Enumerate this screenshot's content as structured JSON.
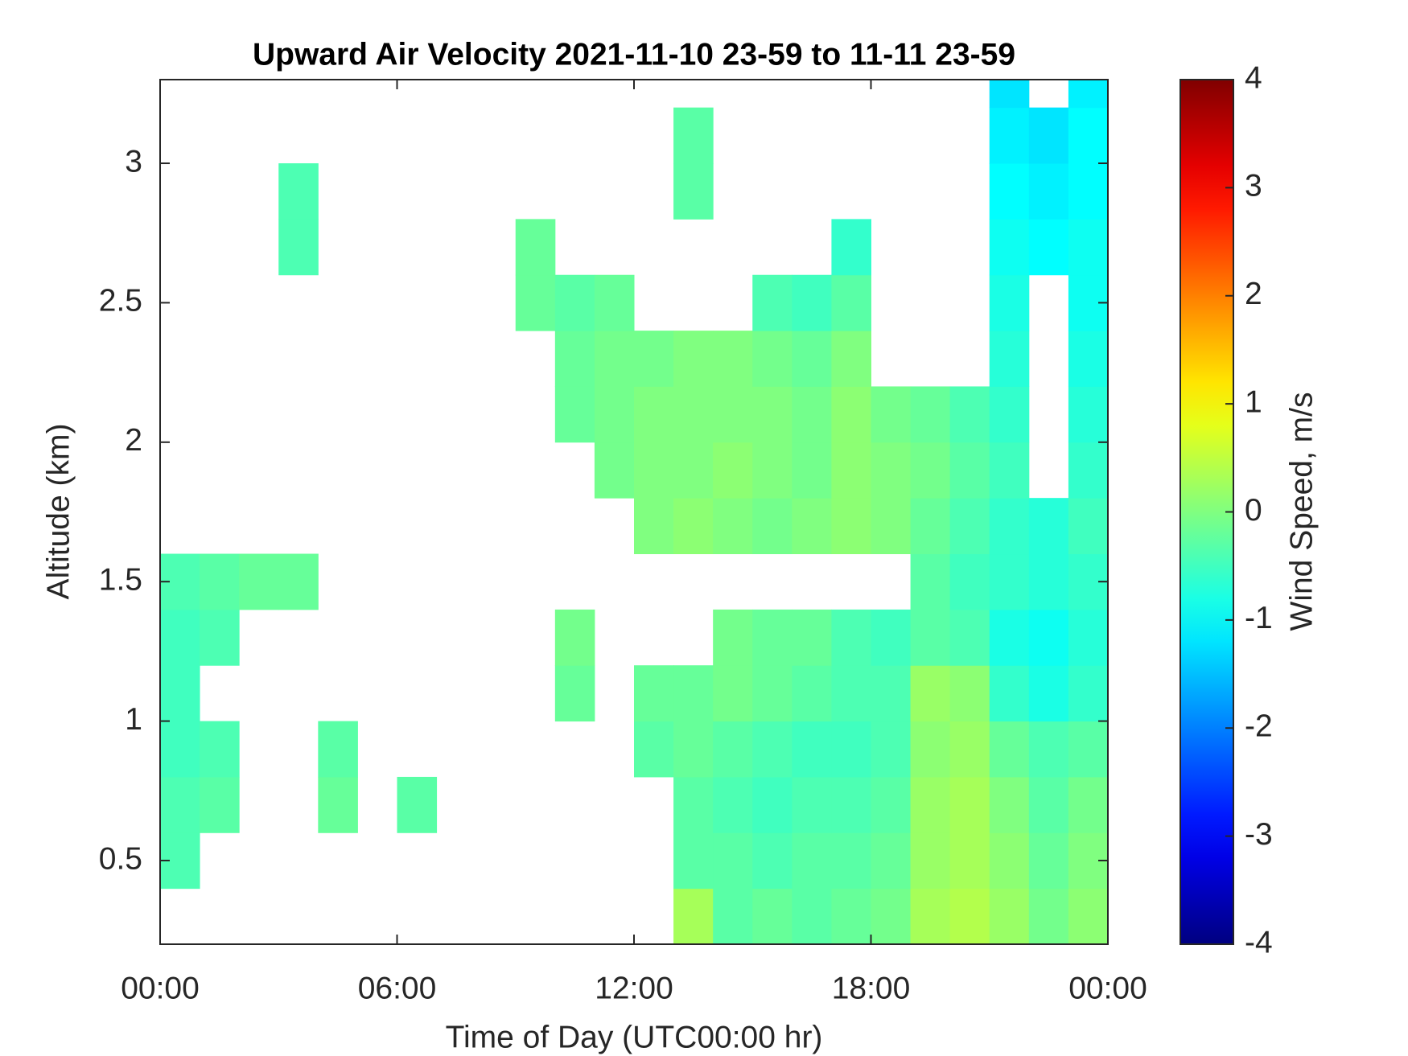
{
  "chart_data": {
    "type": "heatmap",
    "title": "Upward Air Velocity 2021-11-10 23-59 to 11-11 23-59",
    "xlabel": "Time of Day (UTC00:00 hr)",
    "ylabel": "Altitude (km)",
    "colorbar_label": "Wind Speed, m/s",
    "colormap": "jet",
    "x_edges": [
      0,
      1,
      2,
      3,
      4,
      5,
      6,
      7,
      8,
      9,
      10,
      11,
      12,
      13,
      14,
      15,
      16,
      17,
      18,
      19,
      20,
      21,
      22,
      23,
      24
    ],
    "y_edges": [
      0.2,
      0.4,
      0.6,
      0.8,
      1.0,
      1.2,
      1.4,
      1.6,
      1.8,
      2.0,
      2.2,
      2.4,
      2.6,
      2.8,
      3.0,
      3.2,
      3.3
    ],
    "values": [
      [
        null,
        null,
        null,
        null,
        null,
        null,
        null,
        null,
        null,
        null,
        null,
        null,
        null,
        0.3,
        -0.3,
        -0.2,
        -0.3,
        -0.2,
        -0.1,
        0.3,
        0.4,
        0.2,
        -0.1,
        0.1
      ],
      [
        -0.4,
        null,
        null,
        null,
        null,
        null,
        null,
        null,
        null,
        null,
        null,
        null,
        null,
        -0.3,
        -0.3,
        -0.4,
        -0.3,
        -0.3,
        -0.2,
        0.2,
        0.3,
        0.1,
        -0.2,
        0
      ],
      [
        -0.4,
        -0.3,
        null,
        null,
        -0.2,
        null,
        -0.3,
        null,
        null,
        null,
        null,
        null,
        null,
        -0.3,
        -0.4,
        -0.5,
        -0.4,
        -0.4,
        -0.3,
        0.2,
        0.3,
        0,
        -0.3,
        -0.1
      ],
      [
        -0.5,
        -0.4,
        null,
        null,
        -0.3,
        null,
        null,
        null,
        null,
        null,
        null,
        null,
        -0.3,
        -0.2,
        -0.3,
        -0.4,
        -0.5,
        -0.5,
        -0.4,
        0.1,
        0.2,
        -0.2,
        -0.4,
        -0.3
      ],
      [
        -0.5,
        null,
        null,
        null,
        null,
        null,
        null,
        null,
        null,
        null,
        -0.2,
        null,
        -0.2,
        -0.2,
        -0.1,
        -0.2,
        -0.3,
        -0.4,
        -0.4,
        0.2,
        0.1,
        -0.6,
        -0.8,
        -0.6
      ],
      [
        -0.5,
        -0.4,
        null,
        null,
        null,
        null,
        null,
        null,
        null,
        null,
        -0.1,
        null,
        null,
        null,
        -0.1,
        -0.2,
        -0.2,
        -0.4,
        -0.5,
        -0.3,
        -0.4,
        -0.8,
        -0.9,
        -0.7
      ],
      [
        -0.4,
        -0.3,
        -0.2,
        -0.2,
        null,
        null,
        null,
        null,
        null,
        null,
        null,
        null,
        null,
        null,
        null,
        null,
        null,
        null,
        null,
        -0.3,
        -0.5,
        -0.6,
        -0.7,
        -0.6
      ],
      [
        null,
        null,
        null,
        null,
        null,
        null,
        null,
        null,
        null,
        null,
        null,
        null,
        0,
        0.1,
        0,
        -0.1,
        0,
        0.1,
        0,
        -0.2,
        -0.4,
        -0.6,
        -0.7,
        -0.5
      ],
      [
        null,
        null,
        null,
        null,
        null,
        null,
        null,
        null,
        null,
        null,
        null,
        -0.1,
        0,
        0,
        0.1,
        0,
        -0.1,
        0.1,
        0,
        -0.1,
        -0.3,
        -0.5,
        null,
        -0.6
      ],
      [
        null,
        null,
        null,
        null,
        null,
        null,
        null,
        null,
        null,
        null,
        -0.2,
        -0.1,
        0,
        0,
        0,
        0,
        -0.1,
        0.1,
        -0.1,
        -0.2,
        -0.4,
        -0.6,
        null,
        -0.7
      ],
      [
        null,
        null,
        null,
        null,
        null,
        null,
        null,
        null,
        null,
        null,
        -0.2,
        -0.1,
        -0.1,
        0,
        0,
        -0.1,
        -0.2,
        0,
        null,
        null,
        null,
        -0.7,
        null,
        -0.8
      ],
      [
        null,
        null,
        null,
        null,
        null,
        null,
        null,
        null,
        null,
        -0.2,
        -0.3,
        -0.2,
        null,
        null,
        null,
        -0.4,
        -0.5,
        -0.3,
        null,
        null,
        null,
        -0.8,
        null,
        -0.9
      ],
      [
        null,
        null,
        null,
        -0.4,
        null,
        null,
        null,
        null,
        null,
        -0.2,
        null,
        null,
        null,
        null,
        null,
        null,
        null,
        -0.6,
        null,
        null,
        null,
        -0.9,
        -1.0,
        -0.9
      ],
      [
        null,
        null,
        null,
        -0.4,
        null,
        null,
        null,
        null,
        null,
        null,
        null,
        null,
        null,
        -0.3,
        null,
        null,
        null,
        null,
        null,
        null,
        null,
        -1.0,
        -1.1,
        -1.0
      ],
      [
        null,
        null,
        null,
        null,
        null,
        null,
        null,
        null,
        null,
        null,
        null,
        null,
        null,
        -0.3,
        null,
        null,
        null,
        null,
        null,
        null,
        null,
        -1.1,
        -1.2,
        -1.0
      ],
      [
        null,
        null,
        null,
        null,
        null,
        null,
        null,
        null,
        null,
        null,
        null,
        null,
        null,
        null,
        null,
        null,
        null,
        null,
        null,
        null,
        null,
        -1.2,
        null,
        -1.1
      ]
    ],
    "xlim": [
      0,
      24
    ],
    "xticks": [
      {
        "value": 0,
        "label": "00:00"
      },
      {
        "value": 6,
        "label": "06:00"
      },
      {
        "value": 12,
        "label": "12:00"
      },
      {
        "value": 18,
        "label": "18:00"
      },
      {
        "value": 24,
        "label": "00:00"
      }
    ],
    "ylim": [
      0.2,
      3.3
    ],
    "yticks": [
      0.5,
      1,
      1.5,
      2,
      2.5,
      3
    ],
    "clim": [
      -4,
      4
    ],
    "cticks": [
      -4,
      -3,
      -2,
      -1,
      0,
      1,
      2,
      3,
      4
    ]
  }
}
